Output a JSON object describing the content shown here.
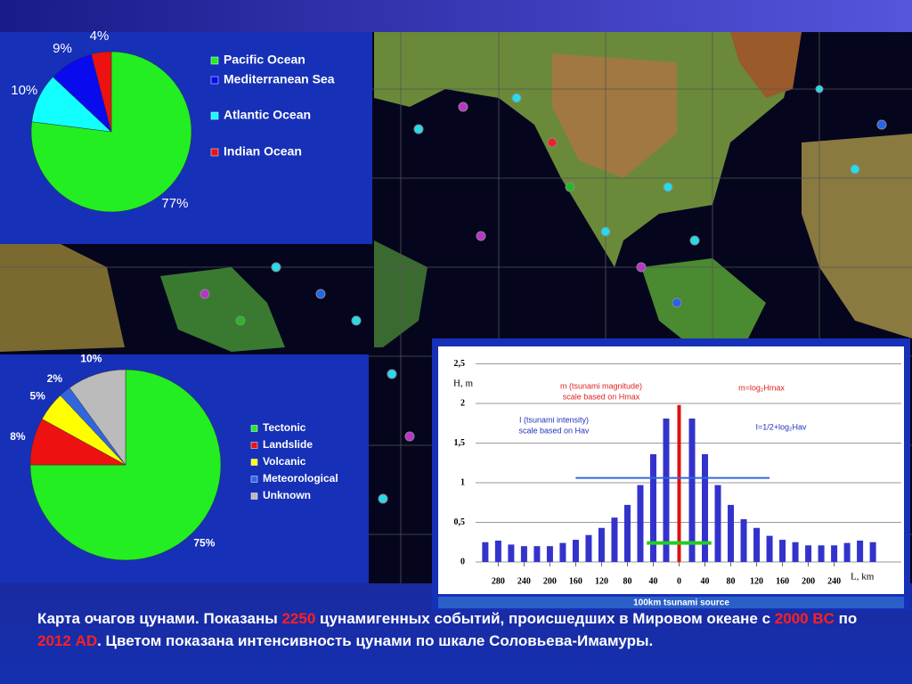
{
  "chart_data": [
    {
      "type": "pie",
      "categories": [
        "Pacific Ocean",
        "Mediterranean Sea",
        "Atlantic Ocean",
        "Indian Ocean"
      ],
      "values": [
        77,
        9,
        10,
        4
      ],
      "value_labels": [
        "77%",
        "9%",
        "10%",
        "4%"
      ],
      "colors": [
        "#22ee22",
        "#0a0aee",
        "#11ffff",
        "#ee1111"
      ]
    },
    {
      "type": "pie",
      "categories": [
        "Tectonic",
        "Landslide",
        "Volcanic",
        "Meteorological",
        "Unknown"
      ],
      "values": [
        75,
        8,
        5,
        2,
        10
      ],
      "value_labels": [
        "75%",
        "8%",
        "5%",
        "2%",
        "10%"
      ],
      "colors": [
        "#22ee22",
        "#ee1111",
        "#ffff00",
        "#3366dd",
        "#bbbbbb"
      ]
    },
    {
      "type": "bar",
      "xlabel": "L, km",
      "ylabel": "H, m",
      "footer": "100km tsunami source",
      "color": "#3333cc",
      "x": [
        -300,
        -280,
        -260,
        -240,
        -220,
        -200,
        -180,
        -160,
        -140,
        -120,
        -100,
        -80,
        -60,
        -40,
        -20,
        20,
        40,
        60,
        80,
        100,
        120,
        140,
        160,
        180,
        200,
        220,
        240,
        260,
        280,
        300
      ],
      "values": [
        0.25,
        0.27,
        0.22,
        0.2,
        0.2,
        0.2,
        0.24,
        0.28,
        0.34,
        0.43,
        0.56,
        0.72,
        0.97,
        1.36,
        1.81,
        1.81,
        1.36,
        0.97,
        0.72,
        0.54,
        0.43,
        0.33,
        0.28,
        0.25,
        0.21,
        0.21,
        0.21,
        0.24,
        0.27,
        0.25
      ],
      "source_bar": {
        "x": 0,
        "value": 1.98,
        "color": "#dd1111"
      },
      "levels": [
        {
          "value": 1.06,
          "x": [
            -160,
            140
          ],
          "color": "#3366dd"
        },
        {
          "value": 0.24,
          "x": [
            -50,
            50
          ],
          "color": "#22cc22"
        }
      ],
      "annotations": [
        {
          "lines": [
            "m (tsunami magnitude)",
            "scale based on Hmax"
          ],
          "color": "#dd2222"
        },
        {
          "lines": [
            "m=log₂Hmax"
          ],
          "color": "#dd2222"
        },
        {
          "lines": [
            "I (tsunami intensity)",
            "scale based on Hav"
          ],
          "color": "#2233bb"
        },
        {
          "lines": [
            "I=1/2+log₂Hav"
          ],
          "color": "#2233bb"
        }
      ],
      "xlim": [
        -315,
        315
      ],
      "ylim": [
        0,
        2.5
      ],
      "xticks": [
        {
          "value": -280,
          "label": "280"
        },
        {
          "value": -240,
          "label": "240"
        },
        {
          "value": -200,
          "label": "200"
        },
        {
          "value": -160,
          "label": "160"
        },
        {
          "value": -120,
          "label": "120"
        },
        {
          "value": -80,
          "label": "80"
        },
        {
          "value": -40,
          "label": "40"
        },
        0,
        40,
        80,
        120,
        160,
        200,
        240
      ],
      "yticks": [
        0,
        {
          "value": 0.5,
          "label": "0,5"
        },
        1,
        {
          "value": 1.5,
          "label": "1,5"
        },
        2,
        {
          "value": 2.5,
          "label": "2,5"
        }
      ],
      "grid": true
    }
  ],
  "caption": [
    {
      "text": "Карта очагов цунами. Показаны ",
      "hl": false
    },
    {
      "text": "2250",
      "hl": true
    },
    {
      "text": " цунамигенных событий, происшедших в Мировом океане с ",
      "hl": false
    },
    {
      "text": "2000 BC",
      "hl": true
    },
    {
      "text": " по ",
      "hl": false
    },
    {
      "text": "2012 AD",
      "hl": true
    },
    {
      "text": ".  Цветом показана интенсивность цунами по шкале Соловьева-Имамуры.",
      "hl": false
    }
  ]
}
